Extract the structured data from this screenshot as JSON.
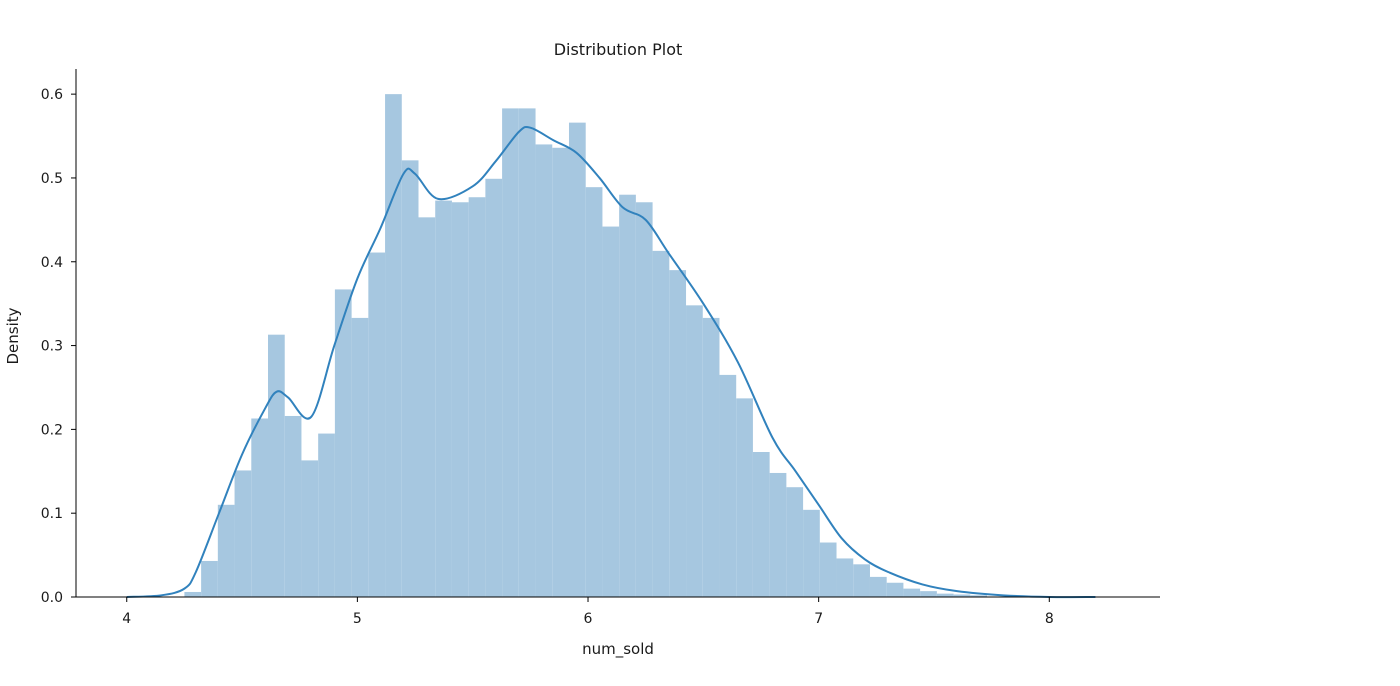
{
  "chart_data": {
    "type": "histogram",
    "title": "Distribution Plot",
    "xlabel": "num_sold",
    "ylabel": "Density",
    "xlim": [
      3.78,
      8.48
    ],
    "ylim": [
      0,
      0.63
    ],
    "xticks": [
      4,
      5,
      6,
      7,
      8
    ],
    "yticks": [
      0.0,
      0.1,
      0.2,
      0.3,
      0.4,
      0.5,
      0.6
    ],
    "xtick_labels": [
      "4",
      "5",
      "6",
      "7",
      "8"
    ],
    "ytick_labels": [
      "0.0",
      "0.1",
      "0.2",
      "0.3",
      "0.4",
      "0.5",
      "0.6"
    ],
    "grid": false,
    "legend": "none",
    "colors": {
      "bars": "#a6c7e0",
      "kde": "#3182bd",
      "axes": "#000000"
    },
    "bins": {
      "width": 0.0725,
      "edges_start": 4.25,
      "densities": [
        0.006,
        0.043,
        0.11,
        0.151,
        0.213,
        0.313,
        0.216,
        0.163,
        0.195,
        0.367,
        0.333,
        0.411,
        0.6,
        0.521,
        0.453,
        0.473,
        0.471,
        0.477,
        0.499,
        0.583,
        0.583,
        0.54,
        0.536,
        0.566,
        0.489,
        0.442,
        0.48,
        0.471,
        0.413,
        0.39,
        0.348,
        0.333,
        0.265,
        0.237,
        0.173,
        0.148,
        0.131,
        0.104,
        0.065,
        0.046,
        0.039,
        0.024,
        0.017,
        0.01,
        0.007,
        0.004,
        0.003,
        0.002
      ]
    },
    "kde": {
      "x": [
        4.0,
        4.15,
        4.25,
        4.3,
        4.4,
        4.5,
        4.6,
        4.65,
        4.7,
        4.8,
        4.9,
        5.0,
        5.1,
        5.2,
        5.25,
        5.35,
        5.5,
        5.6,
        5.7,
        5.75,
        5.85,
        5.95,
        6.05,
        6.15,
        6.25,
        6.35,
        6.5,
        6.65,
        6.8,
        6.9,
        7.0,
        7.1,
        7.2,
        7.3,
        7.45,
        7.6,
        7.8,
        8.0,
        8.2
      ],
      "y": [
        0.0,
        0.002,
        0.01,
        0.03,
        0.1,
        0.17,
        0.225,
        0.245,
        0.238,
        0.215,
        0.3,
        0.38,
        0.44,
        0.505,
        0.505,
        0.475,
        0.49,
        0.52,
        0.555,
        0.56,
        0.545,
        0.53,
        0.5,
        0.465,
        0.45,
        0.41,
        0.35,
        0.28,
        0.19,
        0.15,
        0.11,
        0.07,
        0.045,
        0.03,
        0.015,
        0.007,
        0.002,
        0.0,
        0.0
      ]
    }
  }
}
